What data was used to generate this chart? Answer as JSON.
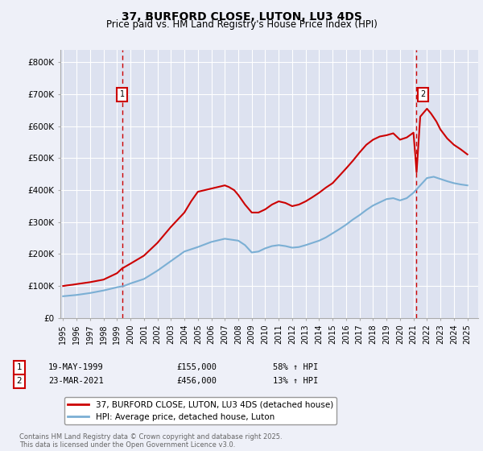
{
  "title": "37, BURFORD CLOSE, LUTON, LU3 4DS",
  "subtitle": "Price paid vs. HM Land Registry's House Price Index (HPI)",
  "background_color": "#eef0f8",
  "plot_bg_color": "#dde2f0",
  "grid_color": "#ffffff",
  "red_line_color": "#cc0000",
  "blue_line_color": "#7bafd4",
  "marker1_date_x": 1999.38,
  "marker2_date_x": 2021.23,
  "marker1_y": 155000,
  "marker2_y": 456000,
  "annotation1": {
    "num": "1",
    "date": "19-MAY-1999",
    "price": "£155,000",
    "hpi": "58% ↑ HPI"
  },
  "annotation2": {
    "num": "2",
    "date": "23-MAR-2021",
    "price": "£456,000",
    "hpi": "13% ↑ HPI"
  },
  "legend_label_red": "37, BURFORD CLOSE, LUTON, LU3 4DS (detached house)",
  "legend_label_blue": "HPI: Average price, detached house, Luton",
  "footer": "Contains HM Land Registry data © Crown copyright and database right 2025.\nThis data is licensed under the Open Government Licence v3.0.",
  "ylim": [
    0,
    840000
  ],
  "xlim_start": 1994.8,
  "xlim_end": 2025.8,
  "yticks": [
    0,
    100000,
    200000,
    300000,
    400000,
    500000,
    600000,
    700000,
    800000
  ],
  "ytick_labels": [
    "£0",
    "£100K",
    "£200K",
    "£300K",
    "£400K",
    "£500K",
    "£600K",
    "£700K",
    "£800K"
  ],
  "red_x": [
    1995.0,
    1995.3,
    1995.7,
    1996.0,
    1996.5,
    1997.0,
    1997.5,
    1998.0,
    1998.5,
    1999.0,
    1999.38,
    2000.0,
    2001.0,
    2002.0,
    2003.0,
    2004.0,
    2004.5,
    2005.0,
    2005.5,
    2006.0,
    2006.5,
    2007.0,
    2007.3,
    2007.7,
    2008.0,
    2008.5,
    2009.0,
    2009.5,
    2010.0,
    2010.5,
    2011.0,
    2011.5,
    2012.0,
    2012.5,
    2013.0,
    2013.5,
    2014.0,
    2014.5,
    2015.0,
    2015.5,
    2016.0,
    2016.5,
    2017.0,
    2017.5,
    2018.0,
    2018.5,
    2019.0,
    2019.5,
    2020.0,
    2020.5,
    2021.0,
    2021.23,
    2021.5,
    2022.0,
    2022.3,
    2022.7,
    2023.0,
    2023.5,
    2024.0,
    2024.5,
    2025.0
  ],
  "red_y": [
    100000,
    102000,
    104000,
    106000,
    109000,
    112000,
    116000,
    120000,
    130000,
    140000,
    155000,
    170000,
    195000,
    235000,
    285000,
    330000,
    365000,
    395000,
    400000,
    405000,
    410000,
    415000,
    410000,
    400000,
    385000,
    355000,
    330000,
    330000,
    340000,
    355000,
    365000,
    360000,
    350000,
    355000,
    365000,
    378000,
    392000,
    408000,
    422000,
    445000,
    468000,
    492000,
    518000,
    542000,
    558000,
    568000,
    572000,
    578000,
    558000,
    565000,
    580000,
    456000,
    630000,
    655000,
    640000,
    615000,
    590000,
    562000,
    542000,
    528000,
    512000
  ],
  "blue_x": [
    1995.0,
    1995.5,
    1996.0,
    1996.5,
    1997.0,
    1997.5,
    1998.0,
    1998.5,
    1999.0,
    1999.5,
    2000.0,
    2001.0,
    2002.0,
    2003.0,
    2004.0,
    2005.0,
    2006.0,
    2007.0,
    2008.0,
    2008.5,
    2009.0,
    2009.5,
    2010.0,
    2010.5,
    2011.0,
    2011.5,
    2012.0,
    2012.5,
    2013.0,
    2013.5,
    2014.0,
    2014.5,
    2015.0,
    2015.5,
    2016.0,
    2016.5,
    2017.0,
    2017.5,
    2018.0,
    2018.5,
    2019.0,
    2019.5,
    2020.0,
    2020.5,
    2021.0,
    2021.5,
    2022.0,
    2022.5,
    2023.0,
    2023.5,
    2024.0,
    2024.5,
    2025.0
  ],
  "blue_y": [
    68000,
    70000,
    72000,
    75000,
    78000,
    82000,
    86000,
    91000,
    96000,
    100000,
    108000,
    122000,
    148000,
    178000,
    208000,
    222000,
    238000,
    248000,
    242000,
    228000,
    205000,
    208000,
    218000,
    225000,
    228000,
    225000,
    220000,
    222000,
    228000,
    235000,
    242000,
    252000,
    265000,
    278000,
    292000,
    308000,
    322000,
    338000,
    352000,
    362000,
    372000,
    375000,
    368000,
    375000,
    392000,
    415000,
    438000,
    442000,
    435000,
    428000,
    422000,
    418000,
    415000
  ]
}
